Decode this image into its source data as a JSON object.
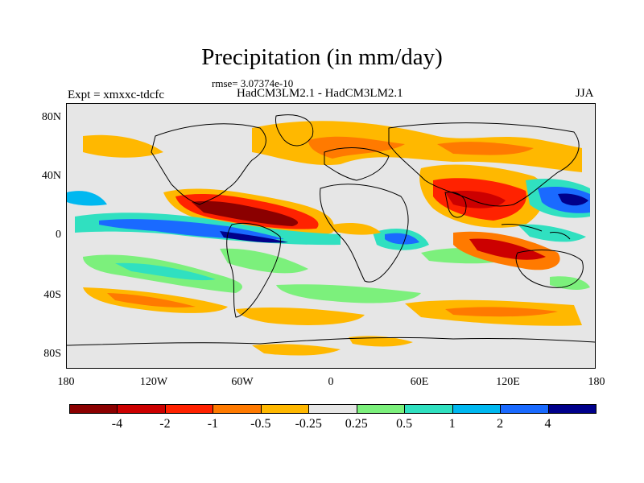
{
  "title": "Precipitation (in mm/day)",
  "rmse": "rmse= 3.07374e-10",
  "expt": "Expt = xmxxc-tdcfc",
  "models": "HadCM3LM2.1 - HadCM3LM2.1",
  "season": "JJA",
  "lat_labels": [
    "80N",
    "40N",
    "0",
    "40S",
    "80S"
  ],
  "lon_labels": [
    "180",
    "120W",
    "60W",
    "0",
    "60E",
    "120E",
    "180"
  ],
  "colorbar": {
    "colors": [
      "#8b0000",
      "#cc0000",
      "#ff2200",
      "#ff7a00",
      "#ffb800",
      "#e6e6e6",
      "#7cf07c",
      "#30e0c0",
      "#00b8f0",
      "#1a6aff",
      "#00008b"
    ],
    "labels": [
      "-4",
      "-2",
      "-1",
      "-0.5",
      "-0.25",
      "0.25",
      "0.5",
      "1",
      "2",
      "4"
    ]
  }
}
